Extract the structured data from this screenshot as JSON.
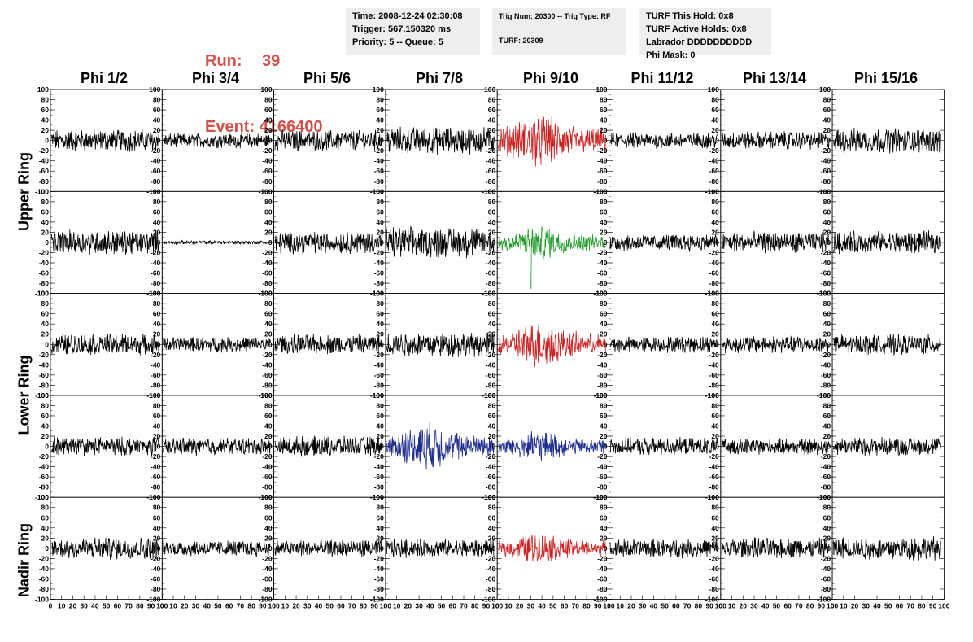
{
  "header": {
    "run_label": "Run:",
    "run_value": "39",
    "event_label": "Event:",
    "event_value": "4166400"
  },
  "info_time": {
    "time": "Time: 2008-12-24 02:30:08",
    "trigger": "Trigger: 567.150320 ms",
    "priority": "Priority: 5 -- Queue: 5"
  },
  "info_trig": {
    "trig": "Trig Num: 20300 -- Trig Type: RF",
    "turf": "TURF: 20309"
  },
  "info_turf": {
    "hold": "TURF This Hold: 0x8",
    "active": "TURF Active Holds: 0x8",
    "labrador": "Labrador DDDDDDDDDD",
    "phimask": "Phi Mask: 0"
  },
  "columns": [
    "Phi 1/2",
    "Phi 3/4",
    "Phi 5/6",
    "Phi 7/8",
    "Phi 9/10",
    "Phi 11/12",
    "Phi 13/14",
    "Phi 15/16"
  ],
  "rings": [
    "Upper Ring",
    "Lower Ring",
    "Nadir Ring"
  ],
  "colors": {
    "normal": "#000000",
    "triggered_red": "#cc2222",
    "triggered_green": "#22992a",
    "triggered_blue": "#1f2e8f",
    "header_red": "#d0504b",
    "info_bg": "#eeeeee"
  },
  "chart_data": {
    "type": "line",
    "panel_rows": 5,
    "panel_cols": 8,
    "ylim": [
      -100,
      100
    ],
    "xlim": [
      0,
      100
    ],
    "yticks": [
      -100,
      -80,
      -60,
      -40,
      -20,
      0,
      20,
      40,
      60,
      80,
      100
    ],
    "xticks": [
      0,
      10,
      20,
      30,
      40,
      50,
      60,
      70,
      80,
      90,
      100
    ],
    "row_amplitudes": [
      [
        18,
        12,
        17,
        22,
        32,
        13,
        15,
        20
      ],
      [
        20,
        3,
        18,
        25,
        20,
        14,
        17,
        18
      ],
      [
        17,
        12,
        16,
        20,
        27,
        13,
        14,
        16
      ],
      [
        15,
        14,
        16,
        28,
        18,
        14,
        13,
        15
      ],
      [
        18,
        13,
        14,
        15,
        18,
        15,
        17,
        19
      ]
    ],
    "highlighted": [
      {
        "row": 0,
        "col": 4,
        "color": "red"
      },
      {
        "row": 1,
        "col": 4,
        "color": "green"
      },
      {
        "row": 2,
        "col": 4,
        "color": "red"
      },
      {
        "row": 3,
        "col": 3,
        "color": "blue"
      },
      {
        "row": 3,
        "col": 4,
        "color": "blue"
      },
      {
        "row": 4,
        "col": 4,
        "color": "red"
      }
    ],
    "samples_per_trace": 260
  }
}
